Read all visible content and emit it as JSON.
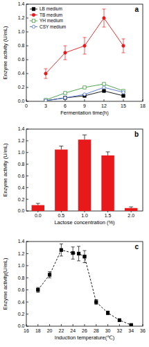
{
  "chart_data": [
    {
      "type": "line",
      "title": "a",
      "x_label": "Fermentation time(h)",
      "y_label": "Enzyme activity (U/mL)",
      "x": [
        3,
        6,
        9,
        12,
        15
      ],
      "xlim": [
        0,
        18
      ],
      "xticks": [
        0,
        3,
        6,
        9,
        12,
        15,
        18
      ],
      "ylim": [
        0,
        1.4
      ],
      "yticks": [
        {
          "value": 0,
          "label": "0.0"
        },
        {
          "value": 0.2,
          "label": "0.2"
        },
        {
          "value": 0.4,
          "label": "0.4"
        },
        {
          "value": 0.6,
          "label": "0.6"
        },
        {
          "value": 0.8,
          "label": "0.8"
        },
        {
          "value": 1.0,
          "label": "1.0"
        },
        {
          "value": 1.2,
          "label": "1.2"
        },
        {
          "value": 1.4,
          "label": "1.4"
        }
      ],
      "legend": "upper left",
      "series": [
        {
          "name": "LB medium",
          "color": "#000000",
          "marker": "filled-square",
          "values": [
            0.01,
            0.05,
            0.08,
            0.15,
            0.08
          ]
        },
        {
          "name": "TB medium",
          "color": "#e8191b",
          "marker": "filled-circle",
          "values": [
            0.4,
            0.7,
            0.8,
            1.2,
            0.8
          ],
          "errors": [
            0.07,
            0.1,
            0.12,
            0.13,
            0.1
          ]
        },
        {
          "name": "YH medium",
          "color": "#3f9a3f",
          "marker": "open-square",
          "values": [
            0.02,
            0.12,
            0.2,
            0.25,
            0.15
          ]
        },
        {
          "name": "CSY medium",
          "color": "#4a6fcf",
          "marker": "open-circle",
          "values": [
            0.01,
            0.05,
            0.1,
            0.2,
            0.13
          ]
        }
      ]
    },
    {
      "type": "bar",
      "title": "b",
      "x_label": "Lactose concentration (%)",
      "y_label": "Enzyme activity (U/mL)",
      "categories": [
        "0.0",
        "0.5",
        "1.0",
        "1.5",
        "2.0"
      ],
      "values": [
        0.1,
        1.05,
        1.22,
        0.95,
        0.05
      ],
      "errors": [
        0.03,
        0.06,
        0.08,
        0.06,
        0.02
      ],
      "color": "#e8191b",
      "ylim": [
        0,
        1.4
      ],
      "yticks": [
        {
          "value": 0,
          "label": "0.0"
        },
        {
          "value": 0.2,
          "label": "0.2"
        },
        {
          "value": 0.4,
          "label": "0.4"
        },
        {
          "value": 0.6,
          "label": "0.6"
        },
        {
          "value": 0.8,
          "label": "0.8"
        },
        {
          "value": 1.0,
          "label": "1.0"
        },
        {
          "value": 1.2,
          "label": "1.2"
        },
        {
          "value": 1.4,
          "label": "1.4"
        }
      ]
    },
    {
      "type": "line",
      "title": "c",
      "x_label": "Induction temperature(℃)",
      "y_label": "Enzyme activity(U/mL)",
      "x": [
        18,
        20,
        22,
        24,
        25,
        26,
        28,
        30,
        32,
        34
      ],
      "values": [
        0.6,
        0.85,
        1.26,
        1.21,
        1.2,
        1.15,
        0.4,
        0.22,
        0.1,
        0.02
      ],
      "errors": [
        0.04,
        0.05,
        0.1,
        0.1,
        0.12,
        0.1,
        0.04,
        0.03,
        0.02,
        0.01
      ],
      "color": "#000000",
      "marker": "filled-square",
      "line_style": "dashed",
      "xlim": [
        16,
        36
      ],
      "xticks": [
        16,
        18,
        20,
        22,
        24,
        26,
        28,
        30,
        32,
        34,
        36
      ],
      "ylim": [
        0,
        1.4
      ],
      "yticks": [
        {
          "value": 0,
          "label": "0.0"
        },
        {
          "value": 0.2,
          "label": "0.2"
        },
        {
          "value": 0.4,
          "label": "0.4"
        },
        {
          "value": 0.6,
          "label": "0.6"
        },
        {
          "value": 0.8,
          "label": "0.8"
        },
        {
          "value": 1.0,
          "label": "1.0"
        },
        {
          "value": 1.2,
          "label": "1.2"
        },
        {
          "value": 1.4,
          "label": "1.4"
        }
      ]
    }
  ]
}
